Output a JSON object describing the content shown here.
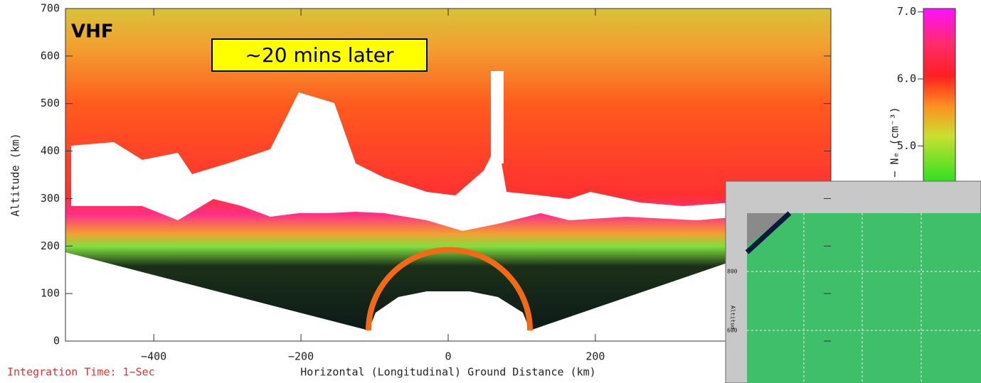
{
  "chart_data": {
    "type": "radar-image",
    "annotation": "VHF",
    "callout": "~20 mins later",
    "footnote": "Integration Time: 1−Sec",
    "x_label": "Horizontal (Longitudinal) Ground Distance (km)",
    "y_label": "Altitude (km)",
    "xlim": [
      -520,
      520
    ],
    "xticks": [
      {
        "value": -400,
        "label": "−400"
      },
      {
        "value": -200,
        "label": "−200"
      },
      0,
      200
    ],
    "ylim": [
      0,
      700
    ],
    "yticks": [
      0,
      100,
      200,
      300,
      400,
      500,
      600,
      700
    ],
    "colorbar": {
      "label": "− Nₑ (cm⁻³)",
      "clim": [
        4.4,
        7.05
      ],
      "ticks": [
        {
          "value": 5,
          "label": "5.0"
        },
        {
          "value": 6,
          "label": "6.0"
        },
        {
          "value": 7,
          "label": "7.0"
        }
      ]
    },
    "inset": {
      "yticks": [
        {
          "value": 600,
          "label": "600"
        },
        {
          "value": 800,
          "label": "800"
        }
      ],
      "y_label": "Altitud"
    }
  }
}
